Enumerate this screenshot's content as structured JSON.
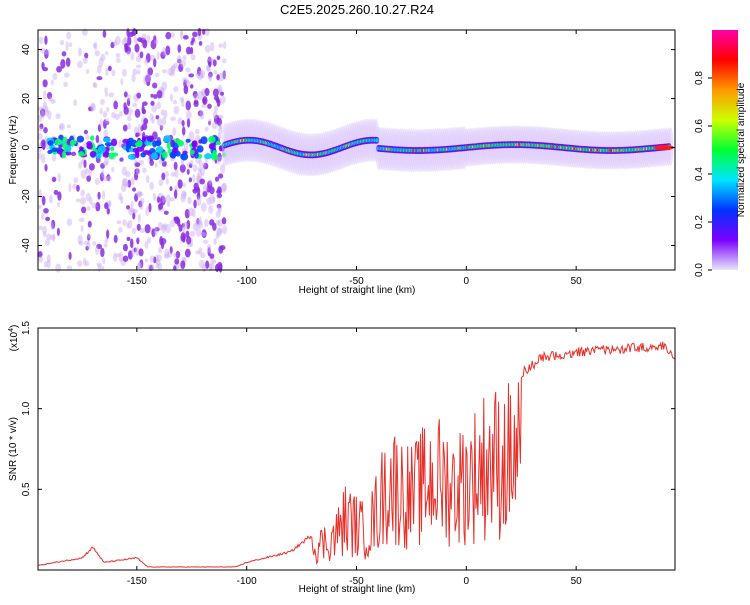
{
  "title": "C2E5.2025.260.10.27.R24",
  "chart_data": [
    {
      "type": "heatmap",
      "xlabel": "Height of straight line (km)",
      "ylabel": "Frequency (Hz)",
      "xlim": [
        -195,
        95
      ],
      "ylim": [
        -50,
        48
      ],
      "xticks": [
        -150,
        -100,
        -50,
        0,
        50
      ],
      "yticks": [
        -40,
        -20,
        0,
        20,
        40
      ],
      "colorbar": {
        "label": "Normalized spectral amplitude",
        "range": [
          0,
          1
        ],
        "ticks": [
          "0.0",
          "0.2",
          "0.4",
          "0.6",
          "0.8"
        ],
        "colormap": [
          "#e6e6fa",
          "#7b00ff",
          "#0033ff",
          "#00e5ff",
          "#00ff33",
          "#ccff00",
          "#ff9900",
          "#ff0000",
          "#ff00aa"
        ]
      }
    },
    {
      "type": "line",
      "xlabel": "Height of straight line (km)",
      "ylabel": "SNR (10 * v/v)",
      "scale_note": "(x10",
      "scale_exp": "4",
      "xlim": [
        -195,
        95
      ],
      "ylim": [
        0,
        1.5
      ],
      "xticks": [
        -150,
        -100,
        -50,
        0,
        50
      ],
      "yticks": [
        "0.5",
        "1.0",
        "1.5"
      ],
      "color": "#e8302a",
      "envelope_x": [
        -195,
        -175,
        -170,
        -165,
        -150,
        -145,
        -140,
        -105,
        -100,
        -80,
        -60,
        -55,
        -45,
        -35,
        -25,
        -15,
        -5,
        5,
        10,
        15,
        25,
        35,
        50,
        70,
        90,
        95
      ],
      "envelope_y": [
        0.03,
        0.08,
        0.15,
        0.05,
        0.08,
        0.02,
        0.02,
        0.02,
        0.05,
        0.12,
        0.35,
        0.55,
        0.4,
        0.95,
        0.78,
        1.0,
        0.88,
        1.05,
        1.18,
        1.15,
        1.25,
        1.35,
        1.38,
        1.4,
        1.42,
        1.35
      ]
    }
  ]
}
